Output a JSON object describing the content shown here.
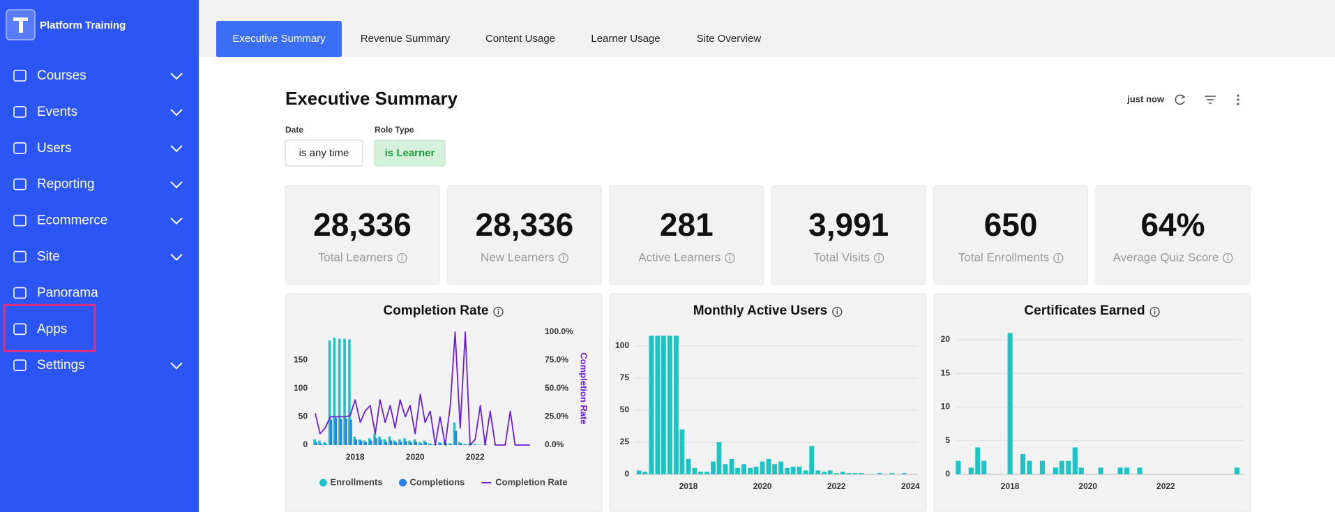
{
  "sidebar": {
    "brand": "Platform Training",
    "menu": [
      {
        "label": "Courses",
        "expandable": true
      },
      {
        "label": "Events",
        "expandable": true
      },
      {
        "label": "Users",
        "expandable": true
      },
      {
        "label": "Reporting",
        "expandable": true
      },
      {
        "label": "Ecommerce",
        "expandable": true
      },
      {
        "label": "Site",
        "expandable": true
      },
      {
        "label": "Panorama",
        "expandable": false
      },
      {
        "label": "Apps",
        "expandable": false,
        "highlighted": true
      },
      {
        "label": "Settings",
        "expandable": true
      }
    ]
  },
  "tabs": [
    {
      "label": "Executive Summary",
      "active": true
    },
    {
      "label": "Revenue Summary",
      "active": false
    },
    {
      "label": "Content Usage",
      "active": false
    },
    {
      "label": "Learner Usage",
      "active": false
    },
    {
      "label": "Site Overview",
      "active": false
    }
  ],
  "header": {
    "title": "Executive Summary",
    "updated": "just now"
  },
  "filters": [
    {
      "label": "Date",
      "value": "is any time"
    },
    {
      "label": "Role Type",
      "value": "is Learner"
    }
  ],
  "kpis": [
    {
      "value": "28,336",
      "label": "Total Learners"
    },
    {
      "value": "28,336",
      "label": "New Learners"
    },
    {
      "value": "281",
      "label": "Active Learners"
    },
    {
      "value": "3,991",
      "label": "Total Visits"
    },
    {
      "value": "650",
      "label": "Total Enrollments"
    },
    {
      "value": "64%",
      "label": "Average Quiz Score"
    }
  ],
  "chart_data": [
    {
      "type": "combo",
      "title": "Completion Rate",
      "x": [
        2016.67,
        2016.83,
        2017,
        2017.17,
        2017.33,
        2017.5,
        2017.67,
        2017.83,
        2018,
        2018.17,
        2018.33,
        2018.5,
        2018.67,
        2018.83,
        2019,
        2019.17,
        2019.33,
        2019.5,
        2019.67,
        2019.83,
        2020,
        2020.17,
        2020.33,
        2020.5,
        2020.67,
        2020.83,
        2021,
        2021.17,
        2021.33,
        2021.5,
        2021.67,
        2021.83,
        2022,
        2022.17,
        2022.33,
        2022.5,
        2022.67,
        2022.83,
        2023,
        2023.17,
        2023.33,
        2023.5,
        2023.67,
        2023.83
      ],
      "xlim": [
        2016.6,
        2023.9
      ],
      "xticks": [
        2018,
        2020,
        2022
      ],
      "ylim": [
        0,
        200
      ],
      "yticks": [
        0,
        50,
        100,
        150
      ],
      "y2lim": [
        0,
        100
      ],
      "y2ticks": [
        {
          "value": 0,
          "label": "0.0%"
        },
        {
          "value": 25,
          "label": "25.0%"
        },
        {
          "value": 50,
          "label": "50.0%"
        },
        {
          "value": 75,
          "label": "75.0%"
        },
        {
          "value": 100,
          "label": "100.0%"
        }
      ],
      "y2label": "Completion Rate",
      "grid": false,
      "legend": "bottom",
      "series": [
        {
          "name": "Enrollments",
          "type": "bar",
          "color": "#1ec4c4",
          "values": [
            10,
            8,
            5,
            185,
            190,
            188,
            188,
            187,
            15,
            10,
            8,
            12,
            20,
            15,
            10,
            15,
            8,
            10,
            12,
            8,
            10,
            5,
            8,
            3,
            2,
            5,
            5,
            3,
            40,
            5,
            2,
            3,
            2,
            1,
            1,
            0,
            1,
            0,
            0,
            0,
            0,
            1,
            0,
            0
          ]
        },
        {
          "name": "Completions",
          "type": "bar",
          "color": "#2f7fea",
          "values": [
            5,
            3,
            2,
            45,
            48,
            46,
            47,
            45,
            10,
            8,
            5,
            8,
            12,
            10,
            6,
            8,
            5,
            6,
            7,
            5,
            6,
            3,
            5,
            2,
            1,
            3,
            3,
            2,
            25,
            3,
            1,
            2,
            1,
            0,
            1,
            0,
            0,
            0,
            0,
            0,
            0,
            1,
            0,
            0
          ]
        },
        {
          "name": "Completion Rate",
          "type": "line",
          "axis": "y2",
          "color": "#6a1fd6",
          "values": [
            28,
            10,
            15,
            25,
            25,
            25,
            25,
            26,
            40,
            20,
            30,
            35,
            10,
            40,
            20,
            35,
            15,
            40,
            25,
            35,
            10,
            45,
            20,
            30,
            0,
            25,
            0,
            35,
            100,
            15,
            100,
            0,
            5,
            35,
            0,
            30,
            0,
            0,
            0,
            30,
            0,
            0,
            0,
            0
          ]
        }
      ]
    },
    {
      "type": "bar",
      "title": "Monthly Active Users",
      "x": [
        2016.67,
        2016.83,
        2017,
        2017.17,
        2017.33,
        2017.5,
        2017.67,
        2017.83,
        2018,
        2018.17,
        2018.33,
        2018.5,
        2018.67,
        2018.83,
        2019,
        2019.17,
        2019.33,
        2019.5,
        2019.67,
        2019.83,
        2020,
        2020.17,
        2020.33,
        2020.5,
        2020.67,
        2020.83,
        2021,
        2021.17,
        2021.33,
        2021.5,
        2021.67,
        2021.83,
        2022,
        2022.17,
        2022.33,
        2022.5,
        2022.67,
        2022.83,
        2023,
        2023.17,
        2023.33,
        2023.5,
        2023.67,
        2023.83
      ],
      "xlim": [
        2016.55,
        2024.2
      ],
      "xticks": [
        2018,
        2020,
        2022,
        2024
      ],
      "ylim": [
        0,
        110
      ],
      "yticks": [
        0,
        25,
        50,
        75,
        100
      ],
      "grid": true,
      "color": "#1ec4c4",
      "values": [
        3,
        2,
        108,
        108,
        108,
        108,
        108,
        35,
        12,
        5,
        2,
        2,
        10,
        25,
        8,
        12,
        5,
        8,
        5,
        6,
        10,
        12,
        8,
        10,
        5,
        6,
        6,
        3,
        22,
        3,
        2,
        3,
        1,
        2,
        1,
        1,
        1,
        0,
        0,
        1,
        0,
        1,
        0,
        1
      ]
    },
    {
      "type": "bar",
      "title": "Certificates Earned",
      "x": [
        2016.67,
        2016.83,
        2017,
        2017.17,
        2017.33,
        2017.5,
        2017.67,
        2017.83,
        2018,
        2018.17,
        2018.33,
        2018.5,
        2018.67,
        2018.83,
        2019,
        2019.17,
        2019.33,
        2019.5,
        2019.67,
        2019.83,
        2020,
        2020.17,
        2020.33,
        2020.5,
        2020.67,
        2020.83,
        2021,
        2021.17,
        2021.33,
        2021.5,
        2021.67,
        2021.83,
        2022,
        2022.17,
        2022.33,
        2022.5,
        2022.67,
        2022.83,
        2023,
        2023.17,
        2023.33,
        2023.5,
        2023.67,
        2023.83
      ],
      "xlim": [
        2016.6,
        2024
      ],
      "xticks": [
        2018,
        2020,
        2022
      ],
      "ylim": [
        0,
        22
      ],
      "yticks": [
        0,
        5,
        10,
        15,
        20
      ],
      "grid": true,
      "color": "#1ec4c4",
      "values": [
        2,
        0,
        1,
        4,
        2,
        0,
        0,
        0,
        21,
        0,
        3,
        2,
        0,
        2,
        0,
        1,
        2,
        2,
        4,
        1,
        0,
        0,
        1,
        0,
        0,
        1,
        1,
        0,
        1,
        0,
        0,
        0,
        0,
        0,
        0,
        0,
        0,
        0,
        0,
        0,
        0,
        0,
        0,
        1
      ]
    }
  ]
}
